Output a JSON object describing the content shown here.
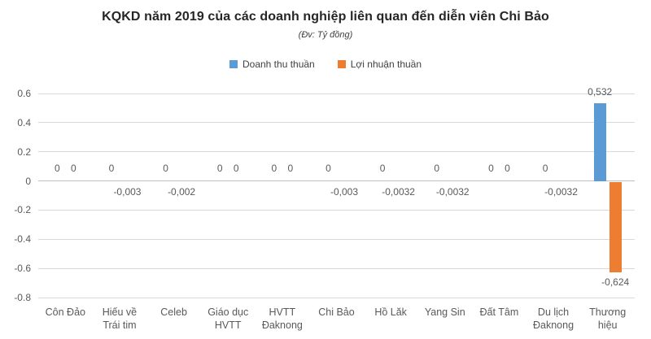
{
  "title": "KQKD năm 2019 của các doanh nghiệp liên quan đến diễn viên Chi Bảo",
  "subtitle": "(Đv: Tỷ đồng)",
  "legend": {
    "items": [
      {
        "label": "Doanh thu thuần",
        "color": "#5B9BD5"
      },
      {
        "label": "Lợi nhuận thuần",
        "color": "#ED7D31"
      }
    ]
  },
  "colors": {
    "revenue_bar": "#5B9BD5",
    "profit_bar": "#ED7D31",
    "gridline": "#d9d9d9",
    "zero_axis": "#bfbfbf",
    "text": "#595959"
  },
  "chart_data": {
    "type": "bar",
    "title": "KQKD năm 2019 của các doanh nghiệp liên quan đến diễn viên Chi Bảo",
    "subtitle": "(Đv: Tỷ đồng)",
    "unit": "Tỷ đồng",
    "legend_position": "top",
    "grid": true,
    "categories": [
      "Côn Đảo",
      "Hiếu về\nTrái tim",
      "Celeb",
      "Giáo dục\nHVTT",
      "HVTT\nĐaknong",
      "Chi Bảo",
      "Hồ Lăk",
      "Yang Sin",
      "Đất Tâm",
      "Du lịch\nĐaknong",
      "Thương\nhiệu"
    ],
    "series": [
      {
        "name": "Doanh thu thuần",
        "color": "#5B9BD5",
        "values": [
          0,
          0,
          0,
          0,
          0,
          0,
          0,
          0,
          0,
          0,
          0.532
        ],
        "labels": [
          "0",
          "0",
          "0",
          "0",
          "0",
          "0",
          "0",
          "0",
          "0",
          "0",
          "0,532"
        ]
      },
      {
        "name": "Lợi nhuận thuần",
        "color": "#ED7D31",
        "values": [
          0,
          -0.003,
          -0.002,
          0,
          0,
          -0.003,
          -0.0032,
          -0.0032,
          0,
          -0.0032,
          -0.624
        ],
        "labels": [
          "0",
          "-0,003",
          "-0,002",
          "0",
          "0",
          "-0,003",
          "-0,0032",
          "-0,0032",
          "0",
          "-0,0032",
          "-0,624"
        ]
      }
    ],
    "y_axis": {
      "min": -0.8,
      "max": 0.6,
      "step": 0.2,
      "ticks": [
        "0.6",
        "0.4",
        "0.2",
        "0",
        "-0.2",
        "-0.4",
        "-0.6",
        "-0.8"
      ]
    }
  }
}
